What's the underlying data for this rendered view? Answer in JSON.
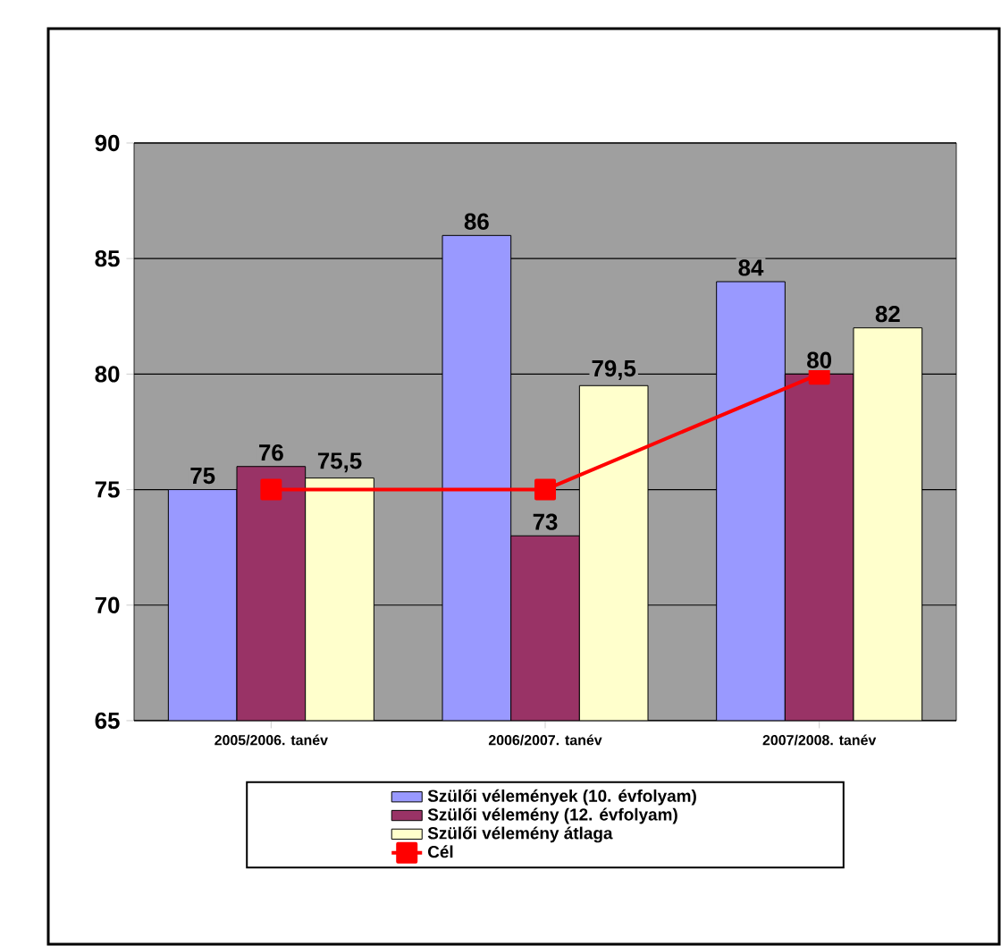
{
  "chart_data": {
    "type": "bar",
    "categories": [
      "2005/2006. tanév",
      "2006/2007. tanév",
      "2007/2008. tanév"
    ],
    "series": [
      {
        "name": "Szülői vélemények (10. évfolyam)",
        "color": "#9999ff",
        "values": [
          75,
          86,
          84
        ],
        "value_labels": [
          "75",
          "86",
          "84"
        ]
      },
      {
        "name": "Szülői vélemény (12. évfolyam)",
        "color": "#993366",
        "values": [
          76,
          73,
          80
        ],
        "value_labels": [
          "76",
          "73",
          "80"
        ]
      },
      {
        "name": "Szülői vélemény átlaga",
        "color": "#ffffcc",
        "values": [
          75.5,
          79.5,
          82
        ],
        "value_labels": [
          "75,5",
          "79,5",
          "82"
        ]
      },
      {
        "name": "Cél",
        "type": "line",
        "color": "#ff0000",
        "values": [
          75,
          75,
          80
        ],
        "marker": "square"
      }
    ],
    "ylim": [
      65,
      90
    ],
    "yticks": [
      65,
      70,
      75,
      80,
      85,
      90
    ],
    "grid": "y",
    "legend": "bottom"
  }
}
